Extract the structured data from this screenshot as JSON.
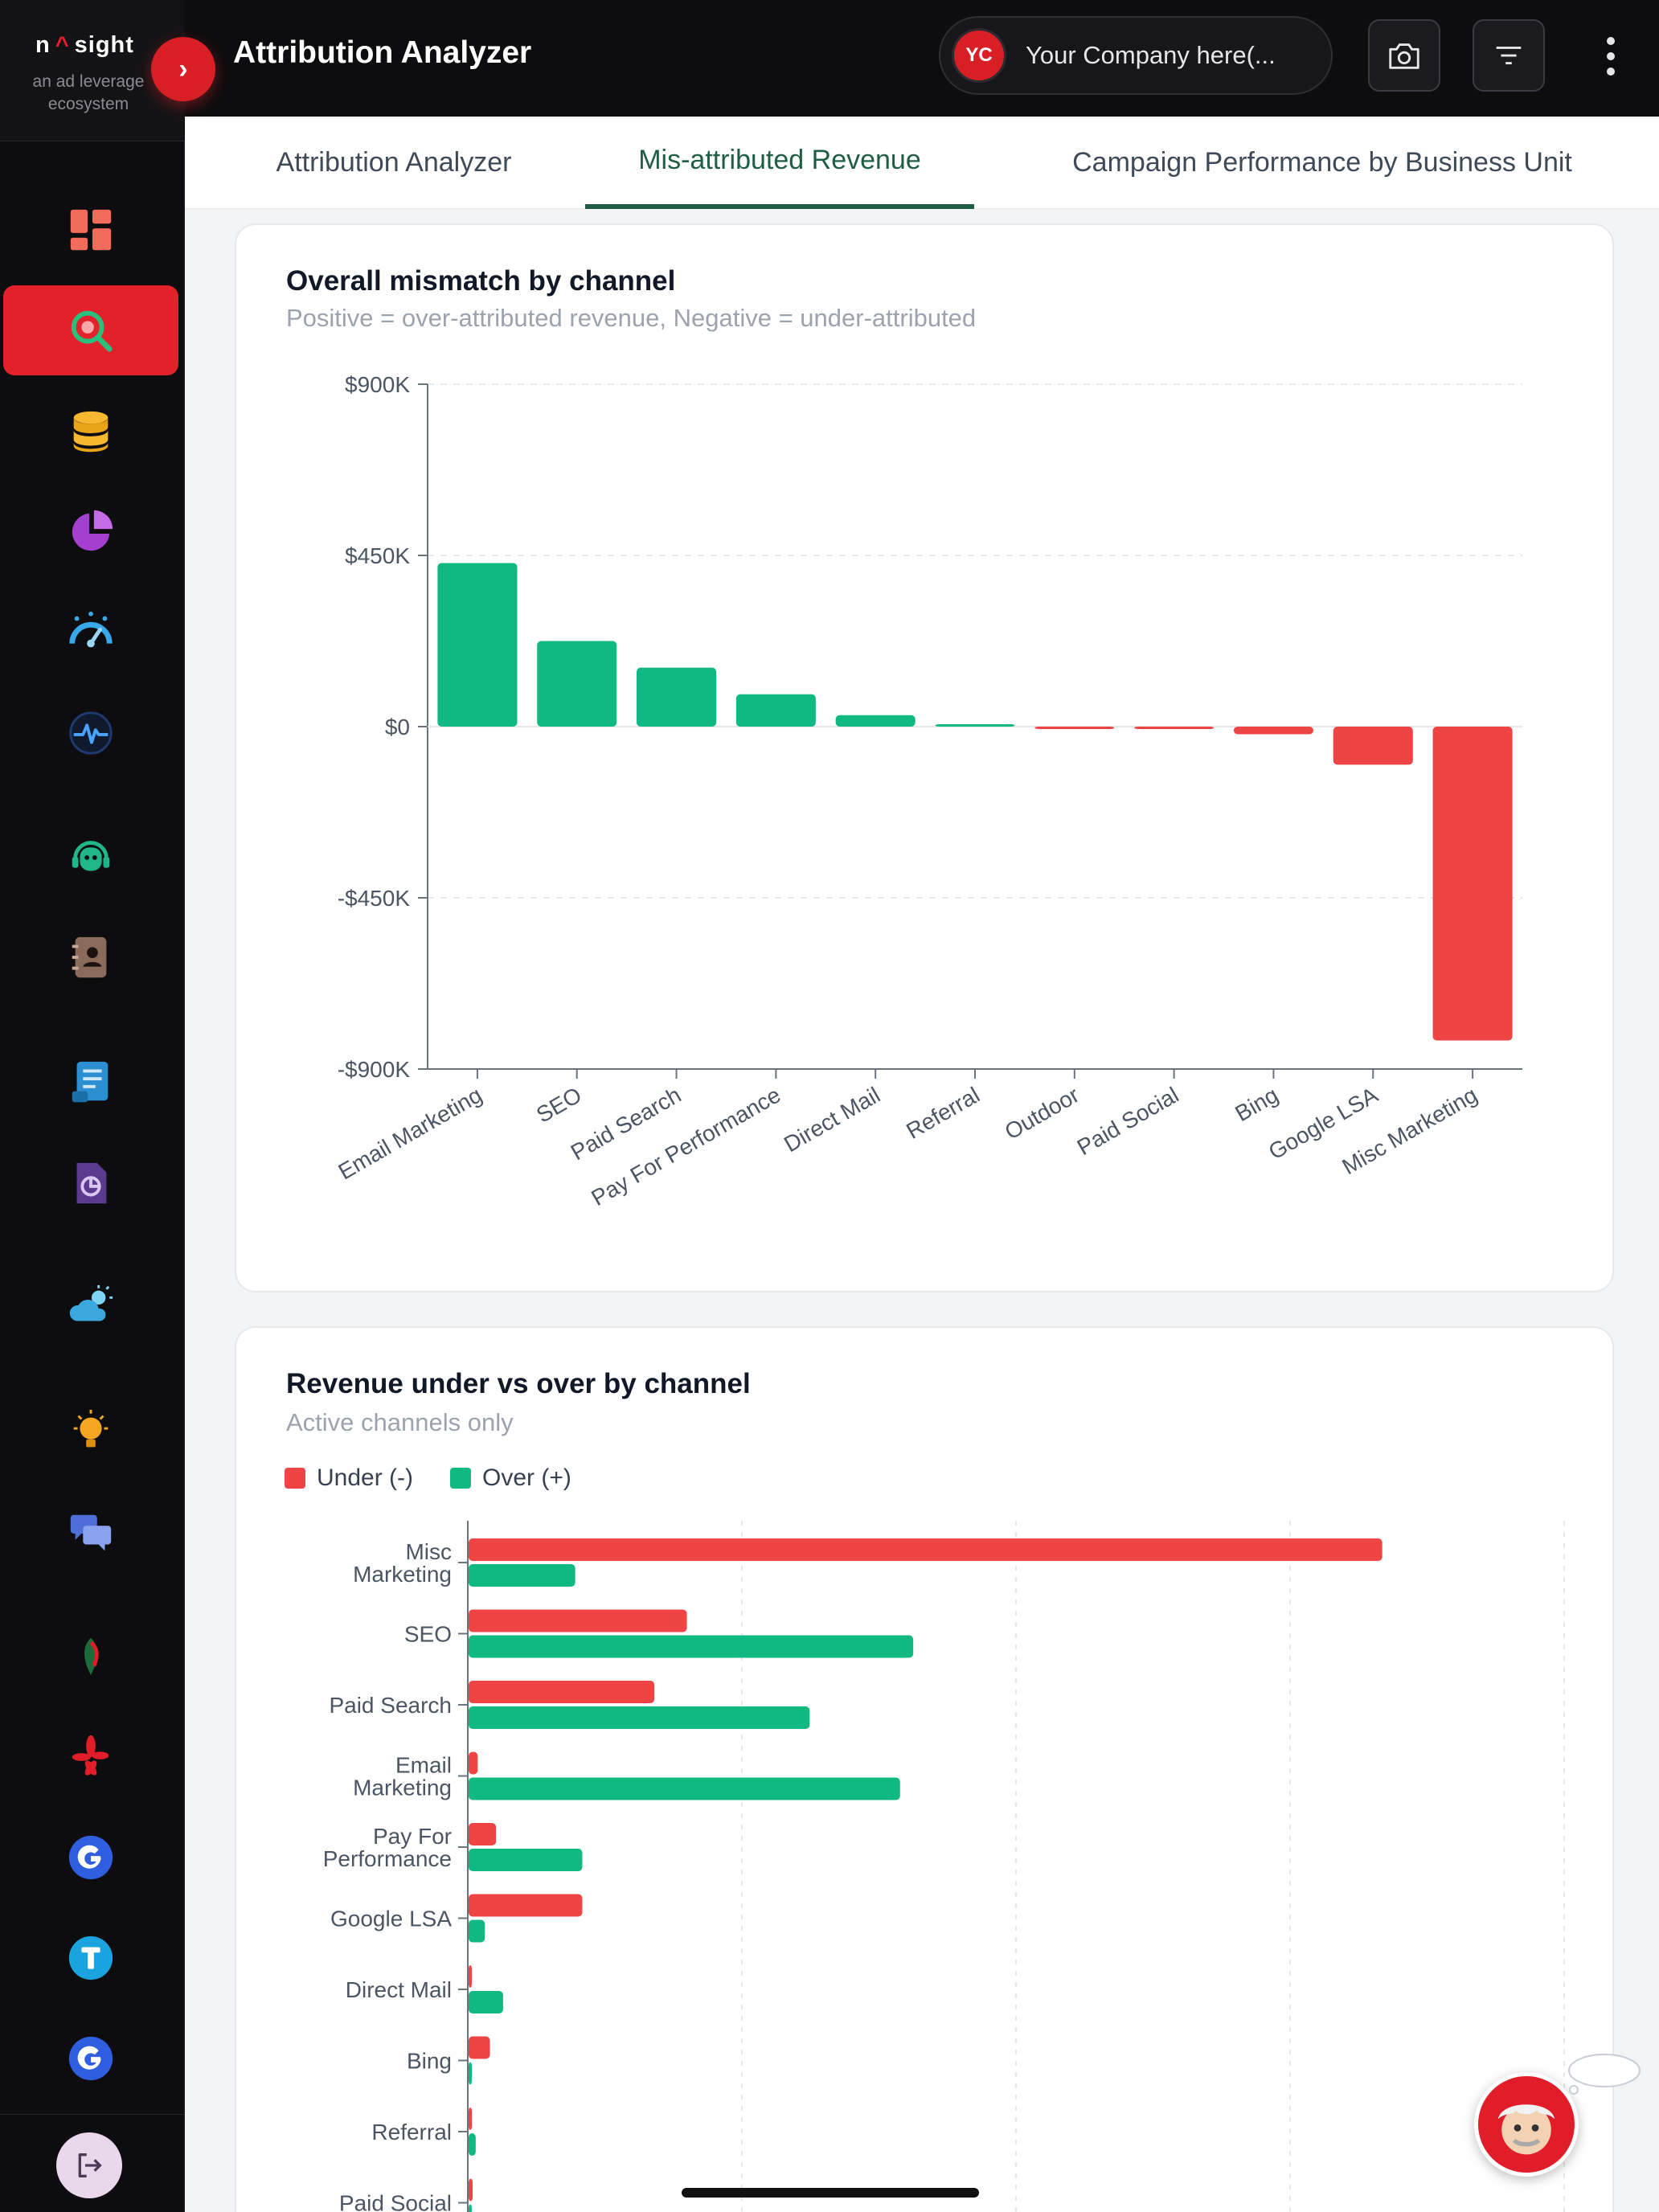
{
  "app": {
    "logo_text_left": "n",
    "logo_caret": "^",
    "logo_text_right": "sight",
    "tagline": "an ad leverage ecosystem",
    "title": "Attribution Analyzer"
  },
  "header": {
    "company_initials": "YC",
    "company_name": "Your Company here(...",
    "camera_icon": "camera-icon",
    "filter_icon": "filter-icon",
    "more_icon": "kebab-icon"
  },
  "tabs": [
    {
      "label": "Attribution Analyzer",
      "active": false
    },
    {
      "label": "Mis-attributed Revenue",
      "active": true
    },
    {
      "label": "Campaign Performance by Business Unit",
      "active": false
    }
  ],
  "sidebar": {
    "items": [
      {
        "icon": "dashboard-icon",
        "active": false
      },
      {
        "icon": "attribution-search-icon",
        "active": true
      },
      {
        "icon": "database-icon",
        "active": false
      },
      {
        "icon": "pie-chart-icon",
        "active": false
      },
      {
        "icon": "gauge-icon",
        "active": false
      },
      {
        "icon": "pulse-icon",
        "active": false
      },
      {
        "icon": "support-bot-icon",
        "active": false
      },
      {
        "icon": "contacts-book-icon",
        "active": false
      },
      {
        "icon": "report-document-icon",
        "active": false
      },
      {
        "icon": "pie-document-icon",
        "active": false
      },
      {
        "icon": "weather-icon",
        "active": false
      },
      {
        "icon": "lightbulb-icon",
        "active": false
      },
      {
        "icon": "chat-bubbles-icon",
        "active": false
      },
      {
        "icon": "brand-leaf-icon",
        "active": false
      },
      {
        "icon": "yelp-icon",
        "active": false
      },
      {
        "icon": "google-icon",
        "active": false
      },
      {
        "icon": "t-brand-icon",
        "active": false
      },
      {
        "icon": "google-ads-icon",
        "active": false
      }
    ],
    "logout_icon": "logout-icon"
  },
  "colors": {
    "over": "#10b981",
    "under": "#ef4444",
    "accent": "#1f5e45",
    "brand": "#e3212b"
  },
  "chart_data": [
    {
      "type": "bar",
      "title": "Overall mismatch by channel",
      "subtitle": "Positive = over-attributed revenue, Negative = under-attributed",
      "categories": [
        "Email Marketing",
        "SEO",
        "Paid Search",
        "Pay For Performance",
        "Direct Mail",
        "Referral",
        "Outdoor",
        "Paid Social",
        "Bing",
        "Google LSA",
        "Misc Marketing"
      ],
      "values": [
        430000,
        225000,
        155000,
        85000,
        30000,
        5000,
        -3000,
        -6000,
        -20000,
        -100000,
        -825000
      ],
      "ylim": [
        -900000,
        900000
      ],
      "yticks": [
        900000,
        450000,
        0,
        -450000,
        -900000
      ],
      "ytick_labels": [
        "$900K",
        "$450K",
        "$0",
        "-$450K",
        "-$900K"
      ],
      "grid": true
    },
    {
      "type": "bar",
      "orientation": "horizontal",
      "title": "Revenue under vs over by channel",
      "subtitle": "Active channels only",
      "categories": [
        "Misc Marketing",
        "SEO",
        "Paid Search",
        "Email Marketing",
        "Pay For Performance",
        "Google LSA",
        "Direct Mail",
        "Bing",
        "Referral",
        "Paid Social"
      ],
      "series": [
        {
          "name": "Under (-)",
          "values": [
            900000,
            215000,
            183000,
            9000,
            27000,
            112000,
            3000,
            21000,
            2000,
            4000
          ]
        },
        {
          "name": "Over (+)",
          "values": [
            105000,
            438000,
            336000,
            425000,
            112000,
            16000,
            34000,
            3000,
            7000,
            0
          ]
        }
      ],
      "xlim": [
        0,
        1080000
      ],
      "legend": "top-left",
      "grid": true
    }
  ]
}
